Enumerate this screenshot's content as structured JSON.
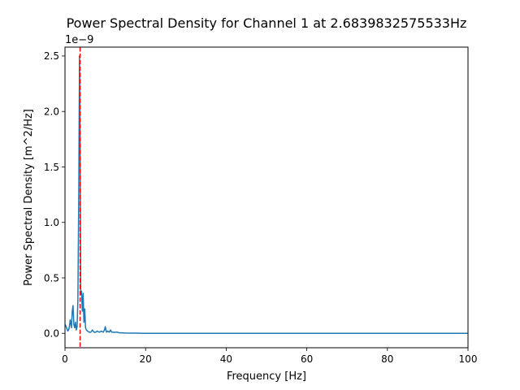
{
  "chart_data": {
    "type": "line",
    "title": "Power Spectral Density for Channel 1 at 2.6839832575533Hz",
    "xlabel": "Frequency [Hz]",
    "ylabel": "Power Spectral Density [m^2/Hz]",
    "y_offset_label": "1e−9",
    "xlim": [
      0,
      100
    ],
    "ylim": [
      -0.13,
      2.58
    ],
    "x_ticks": [
      0,
      20,
      40,
      60,
      80,
      100
    ],
    "x_tick_labels": [
      "0",
      "20",
      "40",
      "60",
      "80",
      "100"
    ],
    "y_ticks": [
      0.0,
      0.5,
      1.0,
      1.5,
      2.0,
      2.5
    ],
    "y_tick_labels": [
      "0.0",
      "0.5",
      "1.0",
      "1.5",
      "2.0",
      "2.5"
    ],
    "grid": false,
    "legend": "none",
    "series": [
      {
        "color": "#1f77b4",
        "x": [
          0,
          0.3,
          0.7,
          1.0,
          1.3,
          1.6,
          1.8,
          2.0,
          2.2,
          2.4,
          2.6,
          2.8,
          3.0,
          3.2,
          3.4,
          3.6,
          3.75,
          3.9,
          4.1,
          4.3,
          4.5,
          4.7,
          4.9,
          5.1,
          5.3,
          5.6,
          6.0,
          6.4,
          6.8,
          7.2,
          7.6,
          8.0,
          8.5,
          9.0,
          9.5,
          9.8,
          10.0,
          10.3,
          10.6,
          11.0,
          11.3,
          11.6,
          12.0,
          12.5,
          13.0,
          13.5,
          14.0,
          15.0,
          17.0,
          20.0,
          30.0,
          50.0,
          70.0,
          100.0
        ],
        "y": [
          0.08,
          0.06,
          0.02,
          0.04,
          0.12,
          0.05,
          0.2,
          0.25,
          0.08,
          0.05,
          0.1,
          0.03,
          0.06,
          0.3,
          1.2,
          2.5,
          1.8,
          0.35,
          0.38,
          0.2,
          0.36,
          0.1,
          0.22,
          0.05,
          0.03,
          0.02,
          0.01,
          0.01,
          0.03,
          0.01,
          0.01,
          0.02,
          0.01,
          0.02,
          0.01,
          0.03,
          0.06,
          0.01,
          0.02,
          0.01,
          0.03,
          0.01,
          0.01,
          0.01,
          0.01,
          0.005,
          0.005,
          0.003,
          0.002,
          0.0,
          0.0,
          0.0,
          0.0,
          0.0
        ]
      }
    ],
    "annotations": [
      {
        "type": "vline",
        "x": 3.75,
        "color": "#ff0000",
        "style": "dashed"
      }
    ]
  }
}
